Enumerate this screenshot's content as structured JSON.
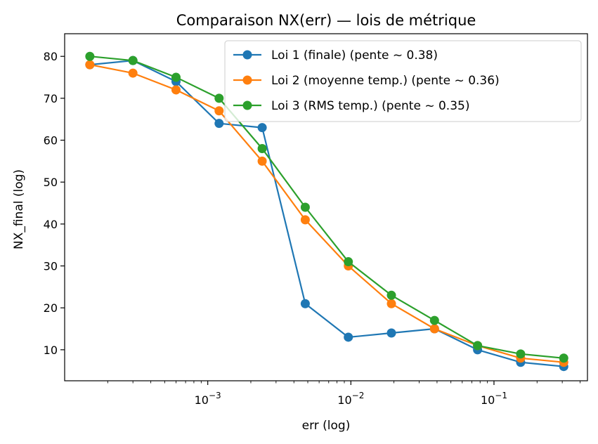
{
  "chart_data": {
    "type": "line",
    "title": "Comparaison NX(err) — lois de métrique",
    "xlabel": "err (log)",
    "ylabel": "NX_final (log)",
    "xscale": "log",
    "xlim": [
      0.0001,
      0.45
    ],
    "ylim": [
      2.6,
      85.4
    ],
    "yticks": [
      10,
      20,
      30,
      40,
      50,
      60,
      70,
      80
    ],
    "xticks": [
      {
        "value": 0.001,
        "base": "10",
        "exp": "−3"
      },
      {
        "value": 0.01,
        "base": "10",
        "exp": "−2"
      },
      {
        "value": 0.1,
        "base": "10",
        "exp": "−1"
      }
    ],
    "grid": false,
    "legend_position": "top-right",
    "x": [
      0.00015,
      0.0003,
      0.0006,
      0.0012,
      0.0024,
      0.0048,
      0.0096,
      0.0192,
      0.0384,
      0.0768,
      0.1536,
      0.3072
    ],
    "series": [
      {
        "name": "Loi 1 (finale) (pente ~ 0.38)",
        "color": "#1f77b4",
        "values": [
          78,
          79,
          74,
          64,
          63,
          21,
          13,
          14,
          15,
          10,
          7,
          6
        ]
      },
      {
        "name": "Loi 2 (moyenne temp.) (pente ~ 0.36)",
        "color": "#ff7f0e",
        "values": [
          78,
          76,
          72,
          67,
          55,
          41,
          30,
          21,
          15,
          11,
          8,
          7
        ]
      },
      {
        "name": "Loi 3 (RMS temp.) (pente ~ 0.35)",
        "color": "#2ca02c",
        "values": [
          80,
          79,
          75,
          70,
          58,
          44,
          31,
          23,
          17,
          11,
          9,
          8
        ]
      }
    ]
  }
}
